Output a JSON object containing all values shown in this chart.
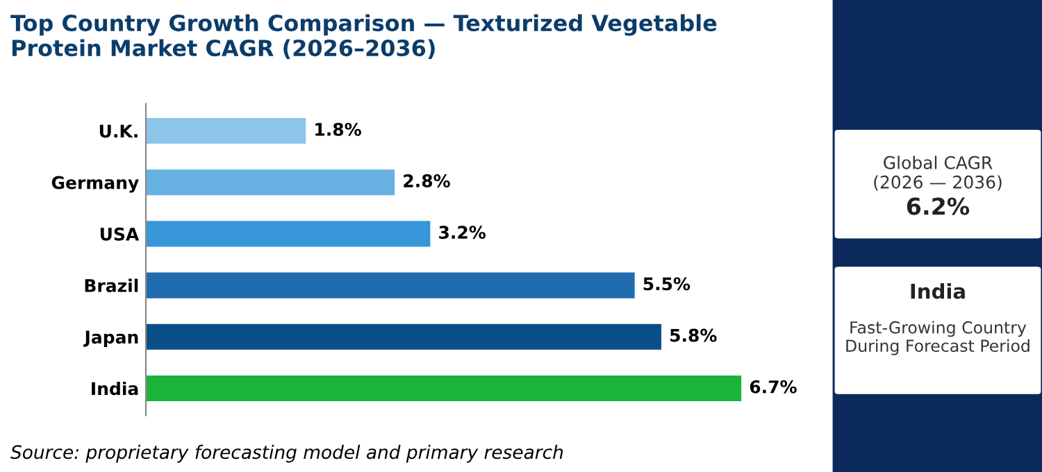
{
  "chart_data": {
    "type": "bar",
    "orientation": "horizontal",
    "title": "Top Country Growth Comparison — Texturized Vegetable Protein Market CAGR (2026–2036)",
    "categories": [
      "U.K.",
      "Germany",
      "USA",
      "Brazil",
      "Japan",
      "India"
    ],
    "values": [
      1.8,
      2.8,
      3.2,
      5.5,
      5.8,
      6.7
    ],
    "colors": [
      "#8cc4ea",
      "#68b1e3",
      "#3897d8",
      "#1f6cae",
      "#0b4f88",
      "#1bb43a"
    ],
    "value_labels": [
      "1.8%",
      "2.8%",
      "3.2%",
      "5.5%",
      "5.8%",
      "6.7%"
    ],
    "annotations": [
      "Source: proprietary forecasting model and primary research",
      "Global CAGR\n(2026 — 2036)",
      "6.2%",
      "India",
      "Fast-Growing Country\nDuring Forecast Period"
    ]
  }
}
